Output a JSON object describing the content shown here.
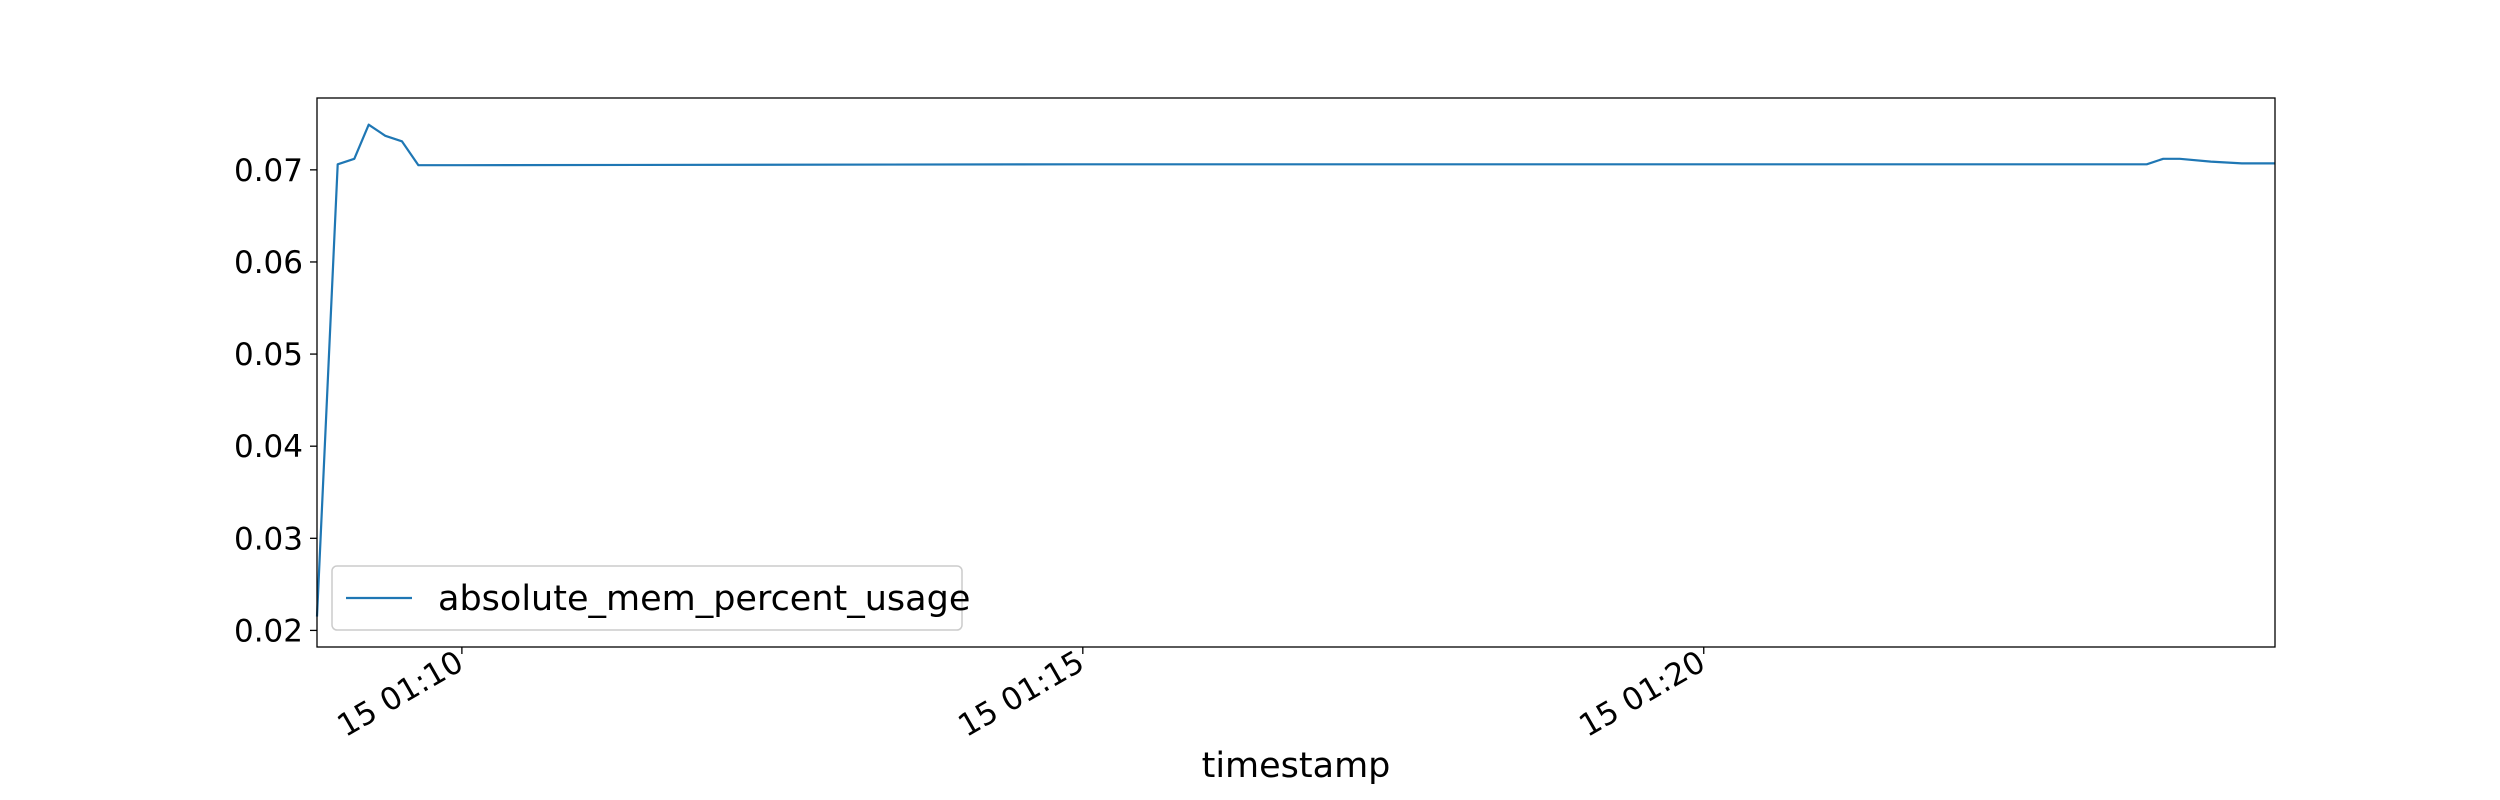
{
  "chart_data": {
    "type": "line",
    "title": "",
    "xlabel": "timestamp",
    "ylabel": "",
    "x_tick_labels": [
      "15 01:10",
      "15 01:15",
      "15 01:20"
    ],
    "x_tick_values": [
      "01:10:00",
      "01:15:00",
      "01:20:00"
    ],
    "y_tick_labels": [
      "0.02",
      "0.03",
      "0.04",
      "0.05",
      "0.06",
      "0.07"
    ],
    "y_tick_values": [
      0.02,
      0.03,
      0.04,
      0.05,
      0.06,
      0.07
    ],
    "xlim": [
      "01:08:50",
      "01:24:36"
    ],
    "ylim": [
      0.0182,
      0.0778
    ],
    "grid": false,
    "legend": {
      "position": "lower-left"
    },
    "colors": {
      "series": "#1f77b4",
      "axes": "#000000",
      "background": "#ffffff"
    },
    "series": [
      {
        "name": "absolute_mem_percent_usage",
        "x": [
          "01:08:50",
          "01:09:00",
          "01:09:08",
          "01:09:15",
          "01:09:23",
          "01:09:31",
          "01:09:39",
          "01:10:00",
          "01:15:00",
          "01:20:00",
          "01:23:34",
          "01:23:42",
          "01:23:50",
          "01:24:05",
          "01:24:20",
          "01:24:36"
        ],
        "y": [
          0.0215,
          0.0706,
          0.0712,
          0.0749,
          0.0737,
          0.0731,
          0.0705,
          0.0705,
          0.0706,
          0.0706,
          0.0706,
          0.0712,
          0.0712,
          0.0709,
          0.0707,
          0.0707
        ]
      }
    ]
  }
}
